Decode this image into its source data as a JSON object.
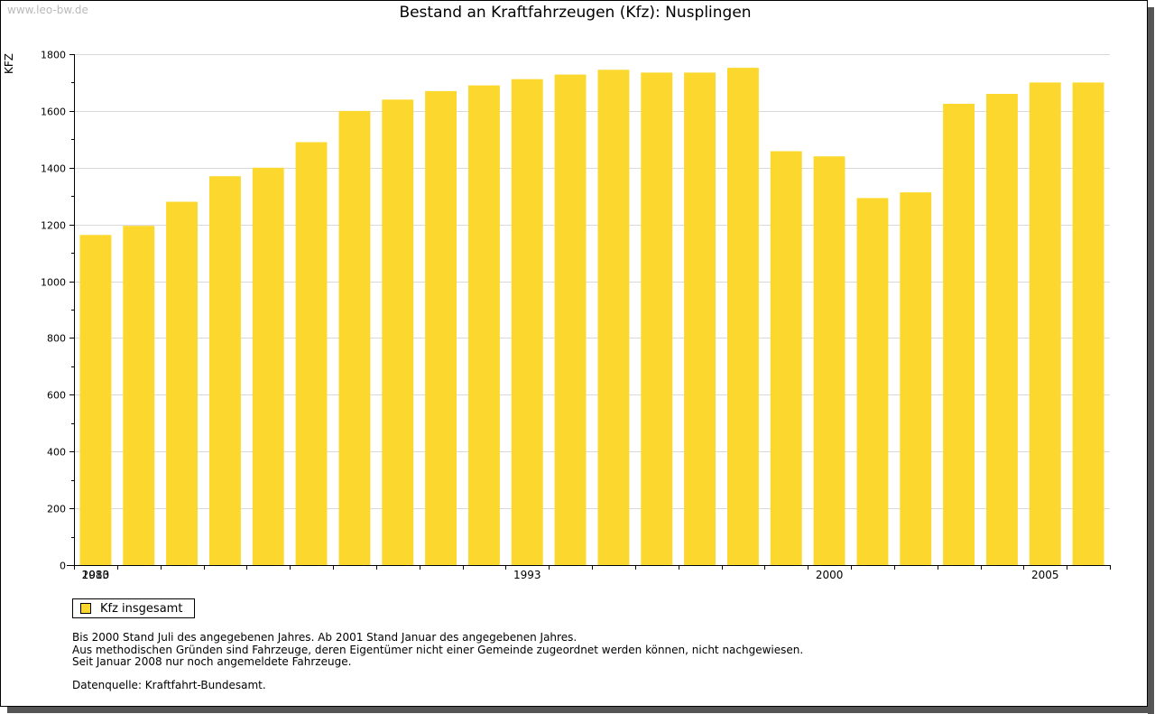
{
  "watermark": "www.leo-bw.de",
  "colors": {
    "bar": "#fcd82e",
    "grid": "#d9d9d9",
    "axis": "#000000"
  },
  "chart_data": {
    "type": "bar",
    "title": "Bestand an Kraftfahrzeugen (Kfz): Nusplingen",
    "xlabel": "",
    "ylabel": "KFZ",
    "ylim": [
      0,
      1800
    ],
    "yticks": [
      0,
      200,
      400,
      600,
      800,
      1000,
      1200,
      1400,
      1600,
      1800
    ],
    "grid": true,
    "legend_position": "bottom-left",
    "categories": [
      "1983",
      "1984",
      "1985",
      "1986",
      "1987",
      "1988",
      "1989",
      "1990",
      "1991",
      "1992",
      "1993",
      "1994",
      "1995",
      "1996",
      "1997",
      "1998",
      "1999",
      "2000",
      "2001",
      "2002",
      "2003",
      "2004",
      "2005",
      "2006"
    ],
    "xtick_labels": [
      "1983",
      "1993",
      "2000",
      "2005",
      "2010"
    ],
    "series": [
      {
        "name": "Kfz insgesamt",
        "values": [
          1163,
          1195,
          1280,
          1370,
          1400,
          1490,
          1600,
          1640,
          1670,
          1690,
          1712,
          1728,
          1745,
          1735,
          1735,
          1752,
          1458,
          1440,
          1293,
          1313,
          1625,
          1660,
          1700,
          1700
        ]
      }
    ]
  },
  "legend": {
    "label": "Kfz insgesamt"
  },
  "notes": [
    "Bis 2000 Stand Juli des angegebenen Jahres. Ab 2001 Stand Januar des angegebenen Jahres.",
    "Aus methodischen Gründen sind Fahrzeuge, deren Eigentümer nicht einer Gemeinde zugeordnet werden können, nicht nachgewiesen.",
    "Seit Januar 2008 nur noch angemeldete Fahrzeuge."
  ],
  "source": "Datenquelle: Kraftfahrt-Bundesamt."
}
